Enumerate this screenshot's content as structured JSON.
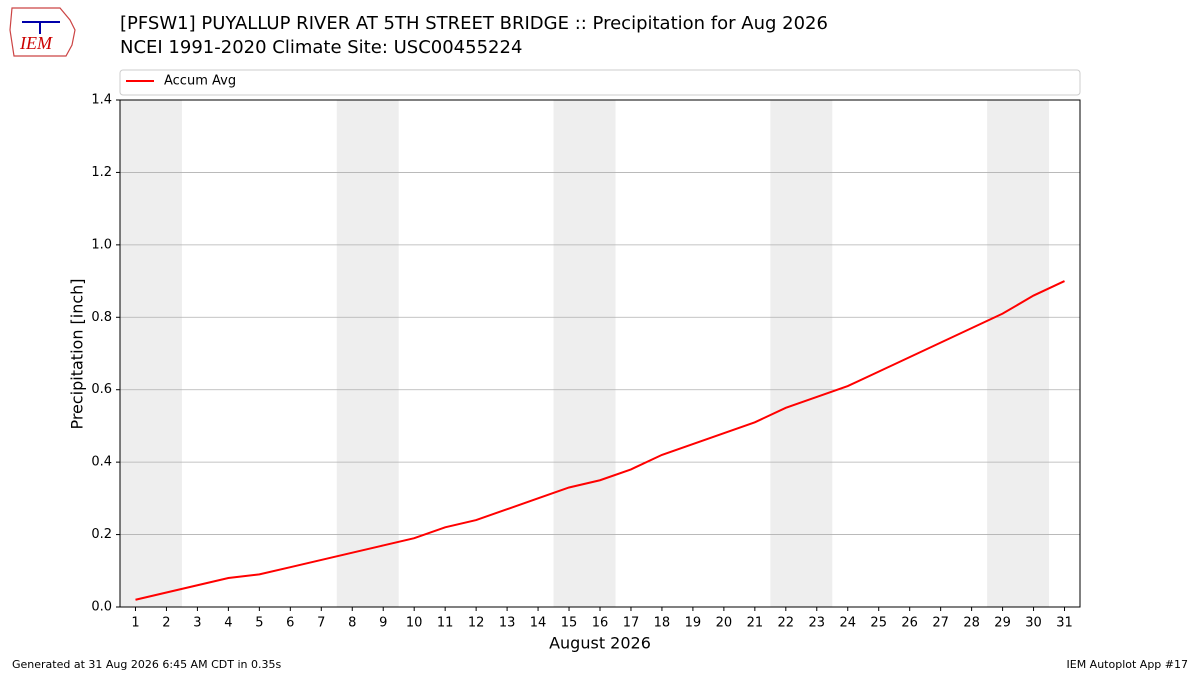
{
  "logo": "IEM",
  "footer_left": "Generated at 31 Aug 2026 6:45 AM CDT in 0.35s",
  "footer_right": "IEM Autoplot App #17",
  "chart_data": {
    "type": "line",
    "title": "[PFSW1] PUYALLUP RIVER AT 5TH STREET BRIDGE :: Precipitation for Aug 2026",
    "subtitle": "NCEI 1991-2020 Climate Site: USC00455224",
    "x_label": "August 2026",
    "y_label": "Precipitation [inch]",
    "x": [
      1,
      2,
      3,
      4,
      5,
      6,
      7,
      8,
      9,
      10,
      11,
      12,
      13,
      14,
      15,
      16,
      17,
      18,
      19,
      20,
      21,
      22,
      23,
      24,
      25,
      26,
      27,
      28,
      29,
      30,
      31
    ],
    "series": [
      {
        "name": "Accum Avg",
        "color": "#ff0000",
        "values": [
          0.02,
          0.04,
          0.06,
          0.08,
          0.09,
          0.11,
          0.13,
          0.15,
          0.17,
          0.19,
          0.22,
          0.24,
          0.27,
          0.3,
          0.33,
          0.35,
          0.38,
          0.42,
          0.45,
          0.48,
          0.51,
          0.55,
          0.58,
          0.61,
          0.65,
          0.69,
          0.73,
          0.77,
          0.81,
          0.86,
          0.9
        ]
      }
    ],
    "xlim": [
      0.5,
      31.5
    ],
    "xticks": [
      1,
      2,
      3,
      4,
      5,
      6,
      7,
      8,
      9,
      10,
      11,
      12,
      13,
      14,
      15,
      16,
      17,
      18,
      19,
      20,
      21,
      22,
      23,
      24,
      25,
      26,
      27,
      28,
      29,
      30,
      31
    ],
    "ylim": [
      0,
      1.4
    ],
    "yticks": [
      {
        "value": 0,
        "label": "0.0"
      },
      {
        "value": 0.2,
        "label": "0.2"
      },
      {
        "value": 0.4,
        "label": "0.4"
      },
      {
        "value": 0.6,
        "label": "0.6"
      },
      {
        "value": 0.8,
        "label": "0.8"
      },
      {
        "value": 1,
        "label": "1.0"
      },
      {
        "value": 1.2,
        "label": "1.2"
      },
      {
        "value": 1.4,
        "label": "1.4"
      }
    ],
    "shaded_spans": [
      [
        0.5,
        2.5
      ],
      [
        7.5,
        9.5
      ],
      [
        14.5,
        16.5
      ],
      [
        21.5,
        23.5
      ],
      [
        28.5,
        30.5
      ]
    ],
    "shade_color": "#eeeeee",
    "grid": true,
    "legend": "top"
  }
}
